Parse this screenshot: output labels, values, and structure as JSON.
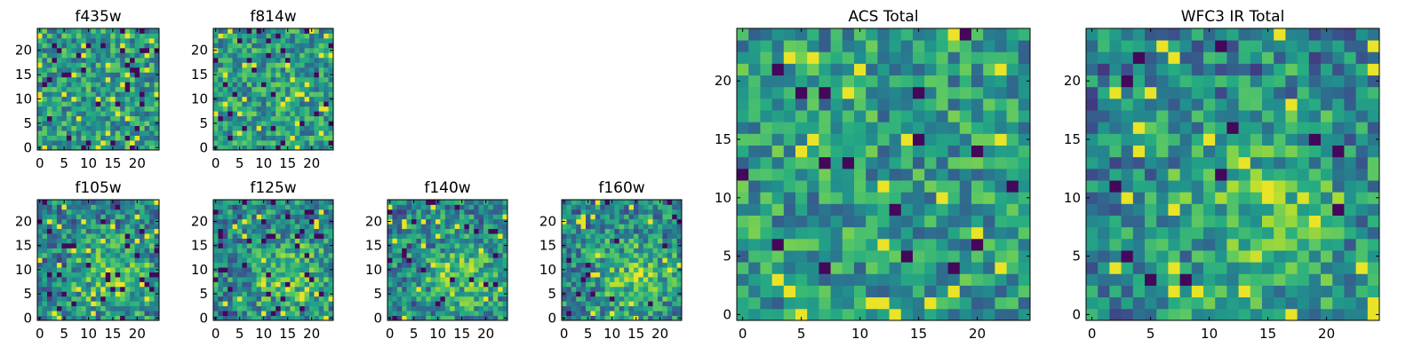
{
  "chart_data": [
    {
      "type": "heatmap",
      "title": "f435w",
      "colormap": "viridis",
      "xlim": [
        -0.5,
        24.5
      ],
      "ylim": [
        -0.5,
        24.5
      ],
      "xticks": [
        "0",
        "5",
        "10",
        "15",
        "20"
      ],
      "yticks": [
        "0",
        "5",
        "10",
        "15",
        "20"
      ]
    },
    {
      "type": "heatmap",
      "title": "f814w",
      "colormap": "viridis",
      "xlim": [
        -0.5,
        24.5
      ],
      "ylim": [
        -0.5,
        24.5
      ],
      "xticks": [
        "0",
        "5",
        "10",
        "15",
        "20"
      ],
      "yticks": [
        "0",
        "5",
        "10",
        "15",
        "20"
      ]
    },
    {
      "type": "heatmap",
      "title": "f105w",
      "colormap": "viridis",
      "xlim": [
        -0.5,
        24.5
      ],
      "ylim": [
        -0.5,
        24.5
      ],
      "xticks": [
        "0",
        "5",
        "10",
        "15",
        "20"
      ],
      "yticks": [
        "0",
        "5",
        "10",
        "15",
        "20"
      ]
    },
    {
      "type": "heatmap",
      "title": "f125w",
      "colormap": "viridis",
      "xlim": [
        -0.5,
        24.5
      ],
      "ylim": [
        -0.5,
        24.5
      ],
      "xticks": [
        "0",
        "5",
        "10",
        "15",
        "20"
      ],
      "yticks": [
        "0",
        "5",
        "10",
        "15",
        "20"
      ]
    },
    {
      "type": "heatmap",
      "title": "f140w",
      "colormap": "viridis",
      "xlim": [
        -0.5,
        24.5
      ],
      "ylim": [
        -0.5,
        24.5
      ],
      "xticks": [
        "0",
        "5",
        "10",
        "15",
        "20"
      ],
      "yticks": [
        "0",
        "5",
        "10",
        "15",
        "20"
      ]
    },
    {
      "type": "heatmap",
      "title": "f160w",
      "colormap": "viridis",
      "xlim": [
        -0.5,
        24.5
      ],
      "ylim": [
        -0.5,
        24.5
      ],
      "xticks": [
        "0",
        "5",
        "10",
        "15",
        "20"
      ],
      "yticks": [
        "0",
        "5",
        "10",
        "15",
        "20"
      ]
    },
    {
      "type": "heatmap",
      "title": "ACS Total",
      "colormap": "viridis",
      "xlim": [
        -0.5,
        24.5
      ],
      "ylim": [
        -0.5,
        24.5
      ],
      "xticks": [
        "0",
        "5",
        "10",
        "15",
        "20"
      ],
      "yticks": [
        "0",
        "5",
        "10",
        "15",
        "20"
      ]
    },
    {
      "type": "heatmap",
      "title": "WFC3 IR Total",
      "colormap": "viridis",
      "xlim": [
        -0.5,
        24.5
      ],
      "ylim": [
        -0.5,
        24.5
      ],
      "xticks": [
        "0",
        "5",
        "10",
        "15",
        "20"
      ],
      "yticks": [
        "0",
        "5",
        "10",
        "15",
        "20"
      ]
    }
  ]
}
